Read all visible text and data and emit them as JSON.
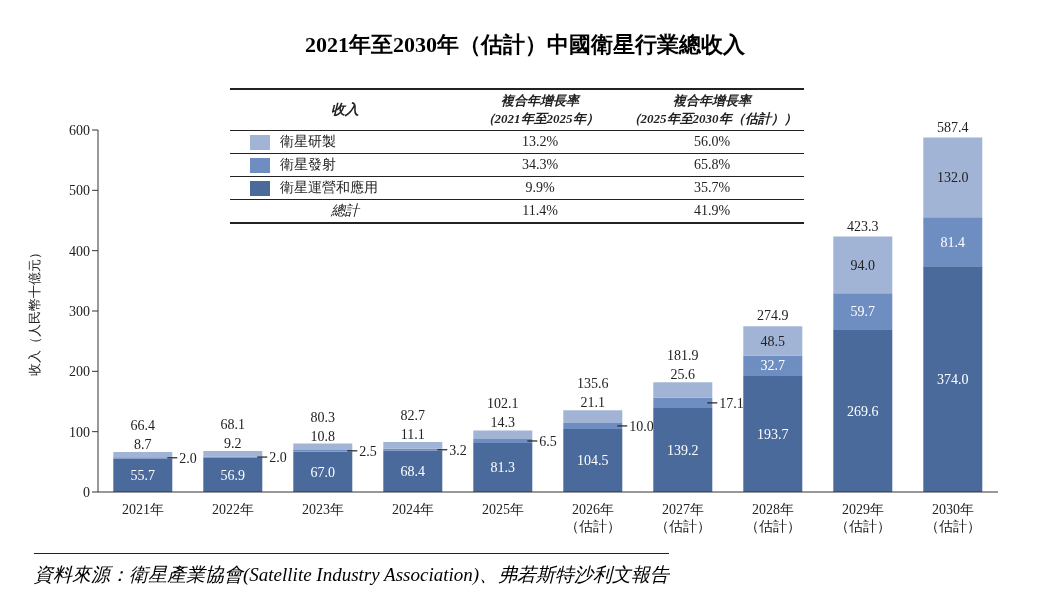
{
  "chart_data": {
    "type": "bar",
    "stacked": true,
    "title": "2021年至2030年（估計）中國衛星行業總收入",
    "ylabel": "收入（人民幣十億元）",
    "legend_title": "收入",
    "legend": "top",
    "categories": [
      "2021年",
      "2022年",
      "2023年",
      "2024年",
      "2025年",
      "2026年（估計）",
      "2027年（估計）",
      "2028年（估計）",
      "2029年（估計）",
      "2030年（估計）"
    ],
    "series": [
      {
        "name": "衛星運營和應用",
        "color": "#4b6a9c",
        "values": [
          55.7,
          56.9,
          67.0,
          68.4,
          81.3,
          104.5,
          139.2,
          193.7,
          269.6,
          374.0
        ],
        "value_labels": [
          "55.7",
          "56.9",
          "67.0",
          "68.4",
          "81.3",
          "104.5",
          "139.2",
          "193.7",
          "269.6",
          "374.0"
        ]
      },
      {
        "name": "衛星發射",
        "color": "#6e8dc1",
        "values": [
          2.0,
          2.0,
          2.5,
          3.2,
          6.5,
          10.0,
          17.1,
          32.7,
          59.7,
          81.4
        ],
        "value_labels": [
          "2.0",
          "2.0",
          "2.5",
          "3.2",
          "6.5",
          "10.0",
          "17.1",
          "32.7",
          "59.7",
          "81.4"
        ]
      },
      {
        "name": "衛星研製",
        "color": "#a2b4d5",
        "values": [
          8.7,
          9.2,
          10.8,
          11.1,
          14.3,
          21.1,
          25.6,
          48.5,
          94.0,
          132.0
        ],
        "value_labels": [
          "8.7",
          "9.2",
          "10.8",
          "11.1",
          "14.3",
          "21.1",
          "25.6",
          "48.5",
          "94.0",
          "132.0"
        ]
      }
    ],
    "totals": [
      "66.4",
      "68.1",
      "80.3",
      "82.7",
      "102.1",
      "135.6",
      "181.9",
      "274.9",
      "423.3",
      "587.4"
    ],
    "ylim": [
      0,
      600
    ],
    "yticks": [
      0,
      100,
      200,
      300,
      400,
      500,
      600
    ],
    "grid": false,
    "annotations": [
      "複合年增長率",
      "（2021年至2025年）",
      "複合年增長率",
      "（2025年至2030年（估計））",
      "13.2%",
      "56.0%",
      "34.3%",
      "65.8%",
      "9.9%",
      "35.7%",
      "總計",
      "11.4%",
      "41.9%",
      "資料來源：衛星產業協會(Satellite Industry Association)、弗若斯特沙利文報告"
    ]
  }
}
